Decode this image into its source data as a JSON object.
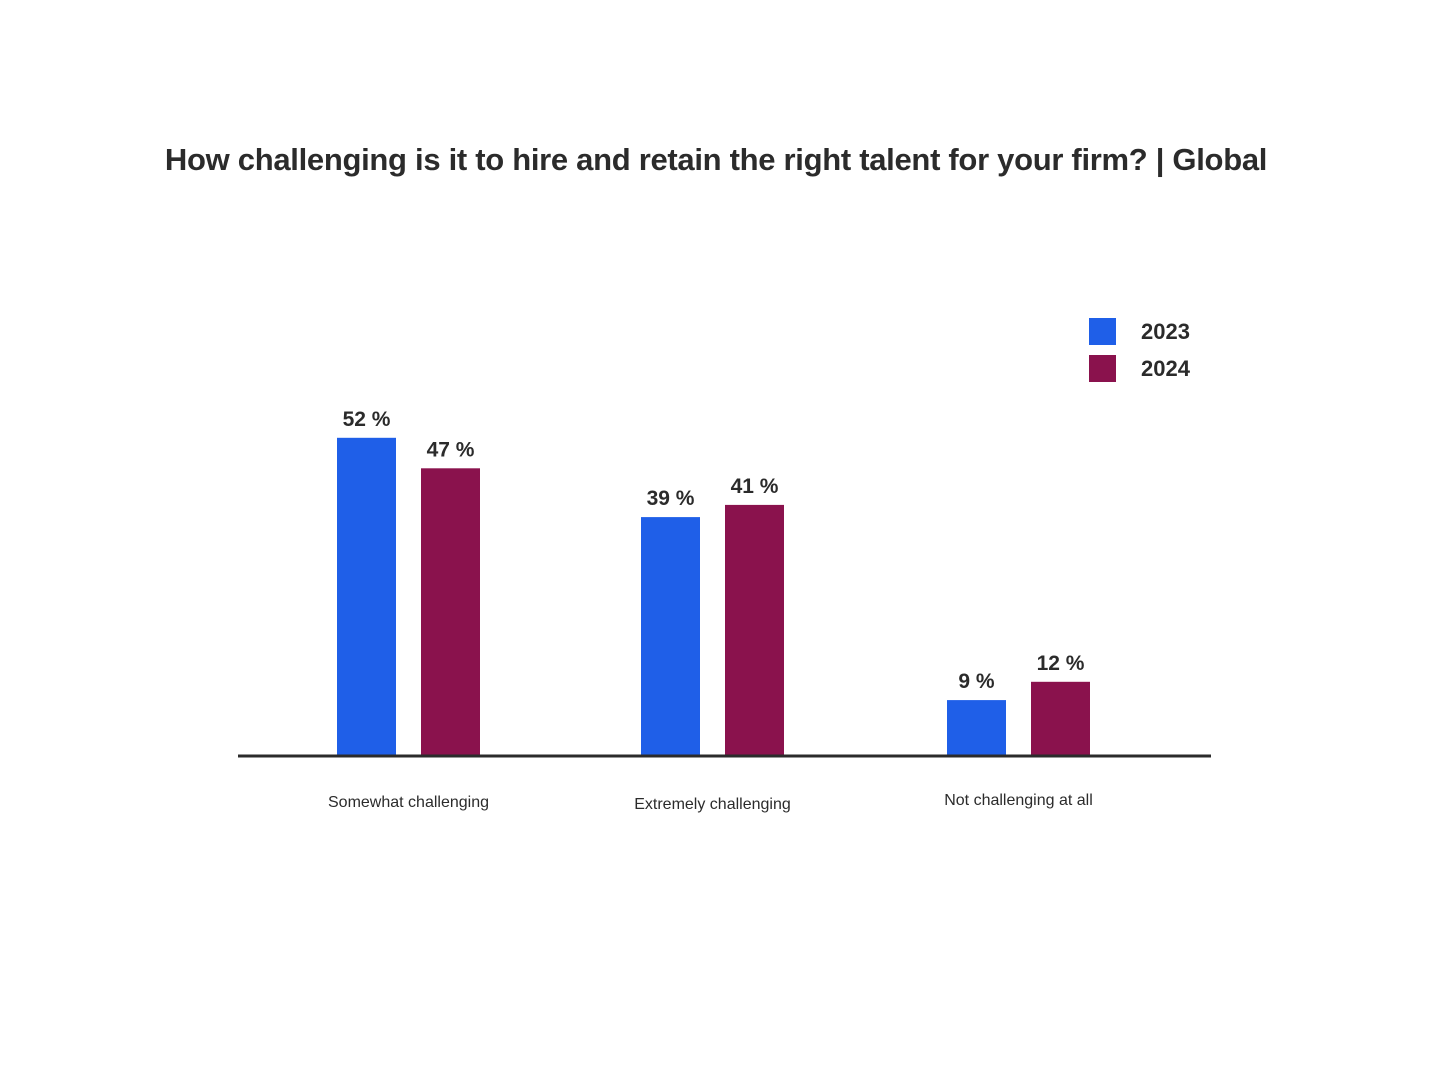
{
  "chart_data": {
    "type": "bar",
    "title": "How challenging is it to hire and retain the right talent for your firm? | Global",
    "categories": [
      "Somewhat challenging",
      "Extremely challenging",
      "Not challenging at all"
    ],
    "series": [
      {
        "name": "2023",
        "values": [
          52,
          39,
          9
        ],
        "color": "#1f5fe8",
        "labels": [
          "52 %",
          "39 %",
          "9 %"
        ]
      },
      {
        "name": "2024",
        "values": [
          47,
          41,
          12
        ],
        "color": "#8a124d",
        "labels": [
          "47 %",
          "41 %",
          "12 %"
        ]
      }
    ],
    "ylim": [
      0,
      60
    ],
    "xlabel": "",
    "ylabel": "",
    "grid": false,
    "legend_position": "top-right",
    "axis_color": "#2b2b2b"
  }
}
